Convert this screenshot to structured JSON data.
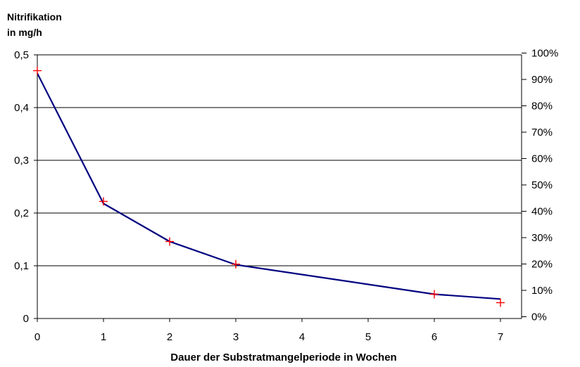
{
  "chart_data": {
    "type": "line",
    "title": "",
    "ylabel_lines": [
      "Nitrifikation",
      "in mg/h"
    ],
    "xlabel": "Dauer der Substratmangelperiode in Wochen",
    "xlim": [
      0,
      7.5
    ],
    "ylim": [
      0,
      0.5
    ],
    "x_ticks": [
      "0",
      "1",
      "2",
      "3",
      "4",
      "5",
      "6",
      "7"
    ],
    "y_ticks": [
      "0",
      "0,1",
      "0,2",
      "0,3",
      "0,4",
      "0,5"
    ],
    "y2lim": [
      0,
      1.0
    ],
    "y2_offset": 0.00667,
    "y2_ticks": [
      "0%",
      "10%",
      "20%",
      "30%",
      "40%",
      "50%",
      "60%",
      "70%",
      "80%",
      "90%",
      "100%"
    ],
    "grid": "horizontal",
    "series": [
      {
        "kind": "line",
        "color": "#000080",
        "points": [
          [
            0,
            0.465
          ],
          [
            1,
            0.218
          ],
          [
            2,
            0.146
          ],
          [
            3,
            0.102
          ],
          [
            6,
            0.046
          ],
          [
            7,
            0.037
          ]
        ]
      },
      {
        "kind": "markers",
        "marker": "plus",
        "color": "#ff0000",
        "points": [
          [
            0,
            0.47
          ],
          [
            1,
            0.222
          ],
          [
            2,
            0.146
          ],
          [
            3,
            0.103
          ],
          [
            6,
            0.046
          ],
          [
            7,
            0.03
          ]
        ]
      }
    ]
  }
}
